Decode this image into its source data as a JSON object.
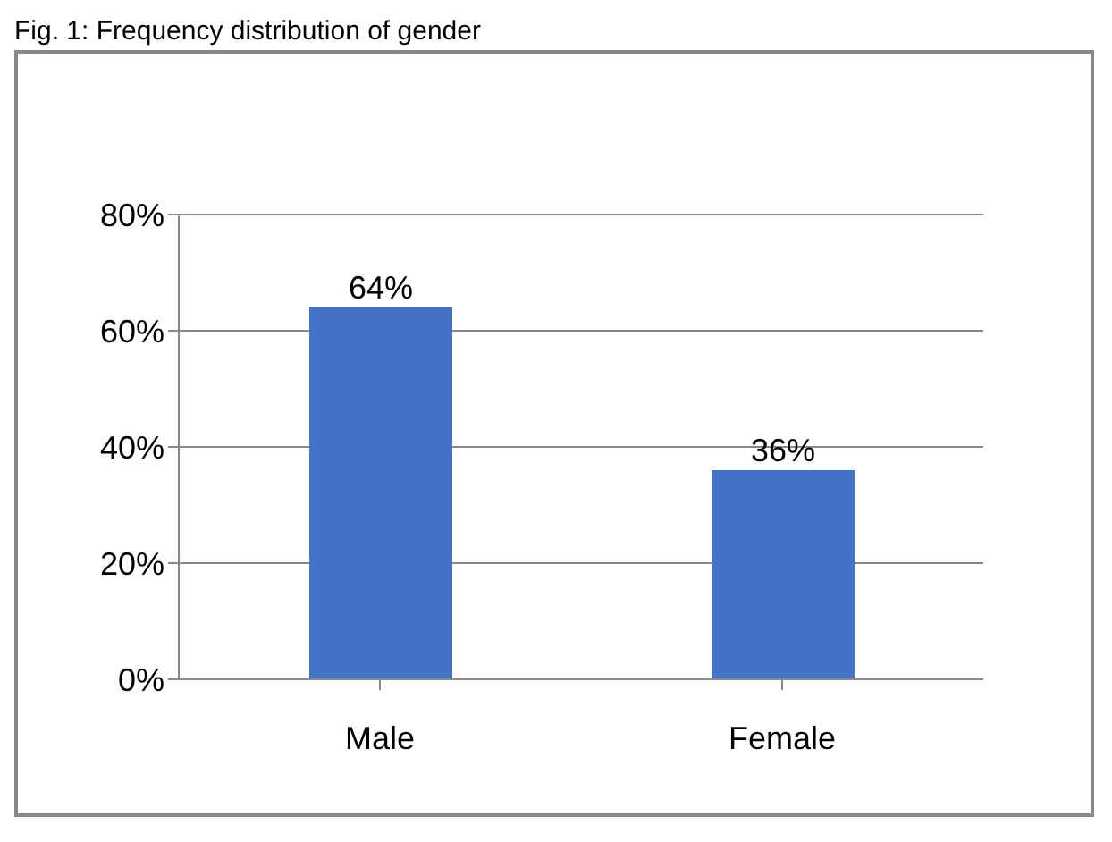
{
  "chart_data": {
    "type": "bar",
    "title": "Fig. 1: Frequency distribution of gender",
    "categories": [
      "Male",
      "Female"
    ],
    "values": [
      64,
      36
    ],
    "value_labels": [
      "64%",
      "36%"
    ],
    "color": "#4472c4",
    "ylim": [
      0,
      80
    ],
    "yticks": [
      {
        "value": 0,
        "label": "0%"
      },
      {
        "value": 20,
        "label": "20%"
      },
      {
        "value": 40,
        "label": "40%"
      },
      {
        "value": 60,
        "label": "60%"
      },
      {
        "value": 80,
        "label": "80%"
      }
    ],
    "grid": "y",
    "legend": false
  }
}
